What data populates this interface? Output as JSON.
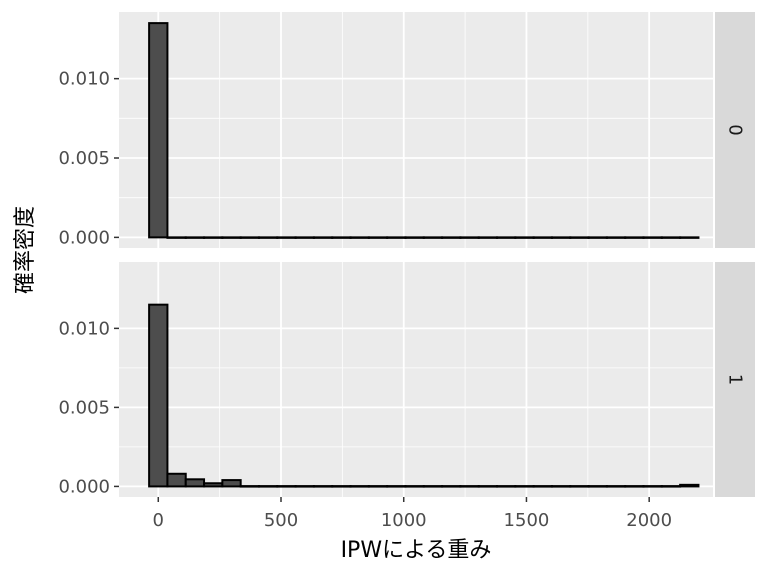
{
  "chart_data": {
    "type": "bar",
    "subtype": "faceted-histogram",
    "xlabel": "IPWによる重み",
    "ylabel": "確率密度",
    "x_ticks": [
      0,
      500,
      1000,
      1500,
      2000
    ],
    "x_tick_labels": [
      "0",
      "500",
      "1000",
      "1500",
      "2000"
    ],
    "y_ticks": [
      0,
      0.005,
      0.01
    ],
    "y_tick_labels": [
      "0.000",
      "0.005",
      "0.010"
    ],
    "xlim": [
      -160,
      2260
    ],
    "ylim": [
      -0.00067,
      0.0142
    ],
    "bin_width": 74.6,
    "bin_start": -37.3,
    "grid": true,
    "colors": {
      "bar_fill": "#4d4d4d",
      "bar_stroke": "#000000",
      "panel_bg": "#ebebeb",
      "strip_bg": "#d9d9d9"
    },
    "panels": [
      {
        "strip_label": "0",
        "values": [
          0.0135,
          5e-07,
          5e-07,
          5e-07,
          5e-07,
          5e-07,
          5e-07,
          5e-07,
          5e-07,
          5e-07,
          5e-07,
          5e-07,
          5e-07,
          5e-07,
          5e-07,
          5e-07,
          5e-07,
          5e-07,
          5e-07,
          5e-07,
          5e-07,
          5e-07,
          5e-07,
          5e-07,
          5e-07,
          5e-07,
          5e-07,
          5e-07,
          5e-07,
          5e-07
        ]
      },
      {
        "strip_label": "1",
        "values": [
          0.0115,
          0.0008,
          0.00045,
          0.0002,
          0.0004,
          2e-05,
          2e-05,
          2e-05,
          2e-05,
          2e-05,
          2e-05,
          2e-05,
          2e-05,
          2e-05,
          2e-05,
          2e-05,
          2e-05,
          2e-05,
          2e-05,
          2e-05,
          2e-05,
          2e-05,
          2e-05,
          2e-05,
          2e-05,
          2e-05,
          2e-05,
          2e-05,
          2e-05,
          0.0001
        ]
      }
    ]
  }
}
